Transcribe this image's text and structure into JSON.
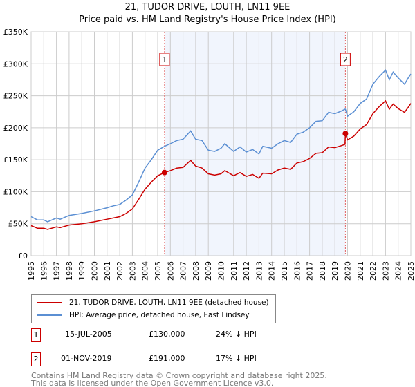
{
  "chart_data": {
    "type": "line",
    "title": "21, TUDOR DRIVE, LOUTH, LN11 9EE",
    "subtitle": "Price paid vs. HM Land Registry's House Price Index (HPI)",
    "xlim": [
      1995,
      2025
    ],
    "ylim": [
      0,
      350000
    ],
    "x_ticks": [
      "1995",
      "1996",
      "1997",
      "1998",
      "1999",
      "2000",
      "2001",
      "2002",
      "2003",
      "2004",
      "2005",
      "2006",
      "2007",
      "2008",
      "2009",
      "2010",
      "2011",
      "2012",
      "2013",
      "2014",
      "2015",
      "2016",
      "2017",
      "2018",
      "2019",
      "2020",
      "2021",
      "2022",
      "2023",
      "2024",
      "2025"
    ],
    "y_ticks": [
      {
        "v": 0,
        "label": "£0"
      },
      {
        "v": 50000,
        "label": "£50K"
      },
      {
        "v": 100000,
        "label": "£100K"
      },
      {
        "v": 150000,
        "label": "£150K"
      },
      {
        "v": 200000,
        "label": "£200K"
      },
      {
        "v": 250000,
        "label": "£250K"
      },
      {
        "v": 300000,
        "label": "£300K"
      },
      {
        "v": 350000,
        "label": "£350K"
      }
    ],
    "grid": true,
    "shaded_range": [
      2005.54,
      2019.83
    ],
    "series": [
      {
        "name": "21, TUDOR DRIVE, LOUTH, LN11 9EE (detached house)",
        "color": "#cc0000",
        "x": [
          1995,
          1995.5,
          1996,
          1996.3,
          1997,
          1997.3,
          1998,
          1999,
          2000,
          2001,
          2001.5,
          2002,
          2002.5,
          2003,
          2003.5,
          2004,
          2004.5,
          2005,
          2005.54,
          2006,
          2006.5,
          2007,
          2007.6,
          2008,
          2008.5,
          2009,
          2009.5,
          2010,
          2010.3,
          2011,
          2011.5,
          2012,
          2012.5,
          2013,
          2013.3,
          2014,
          2014.5,
          2015,
          2015.5,
          2016,
          2016.5,
          2017,
          2017.5,
          2018,
          2018.5,
          2019,
          2019.5,
          2019.8,
          2019.83,
          2020,
          2020.5,
          2021,
          2021.5,
          2022,
          2022.5,
          2023,
          2023.3,
          2023.6,
          2024,
          2024.5,
          2024.8,
          2025
        ],
        "y": [
          47000,
          43000,
          43000,
          41000,
          45000,
          44000,
          48000,
          50000,
          53000,
          57000,
          59000,
          61000,
          66000,
          73000,
          88000,
          104000,
          115000,
          125000,
          130000,
          133000,
          137000,
          138000,
          149000,
          140000,
          137000,
          128000,
          126000,
          128000,
          133000,
          125000,
          130000,
          124000,
          127000,
          121000,
          129000,
          128000,
          134000,
          137000,
          135000,
          145000,
          147000,
          152000,
          160000,
          161000,
          170000,
          169000,
          172000,
          174000,
          191000,
          181000,
          187000,
          198000,
          205000,
          222000,
          233000,
          242000,
          229000,
          237000,
          230000,
          224000,
          232000,
          238000
        ]
      },
      {
        "name": "HPI: Average price, detached house, East Lindsey",
        "color": "#5b8fd3",
        "x": [
          1995,
          1995.5,
          1996,
          1996.3,
          1997,
          1997.3,
          1998,
          1999,
          2000,
          2001,
          2001.5,
          2002,
          2002.5,
          2003,
          2003.5,
          2004,
          2004.5,
          2005,
          2005.54,
          2006,
          2006.5,
          2007,
          2007.6,
          2008,
          2008.5,
          2009,
          2009.5,
          2010,
          2010.3,
          2011,
          2011.5,
          2012,
          2012.5,
          2013,
          2013.3,
          2014,
          2014.5,
          2015,
          2015.5,
          2016,
          2016.5,
          2017,
          2017.5,
          2018,
          2018.5,
          2019,
          2019.5,
          2019.8,
          2019.83,
          2020,
          2020.5,
          2021,
          2021.5,
          2022,
          2022.5,
          2023,
          2023.3,
          2023.6,
          2024,
          2024.5,
          2024.8,
          2025
        ],
        "y": [
          61000,
          56000,
          56000,
          53000,
          59000,
          57000,
          63000,
          66000,
          70000,
          75000,
          78000,
          80000,
          87000,
          95000,
          115000,
          137000,
          150000,
          165000,
          171000,
          175000,
          180000,
          182000,
          195000,
          182000,
          180000,
          165000,
          163000,
          168000,
          175000,
          163000,
          170000,
          162000,
          166000,
          159000,
          171000,
          168000,
          175000,
          180000,
          177000,
          190000,
          193000,
          200000,
          210000,
          211000,
          224000,
          222000,
          226000,
          229000,
          229000,
          218000,
          225000,
          238000,
          245000,
          268000,
          280000,
          290000,
          275000,
          287000,
          278000,
          268000,
          278000,
          284000
        ]
      }
    ],
    "annotations": [
      {
        "label": "1",
        "x": 2005.54,
        "y": 130000
      },
      {
        "label": "2",
        "x": 2019.83,
        "y": 191000
      }
    ]
  },
  "legend": {
    "items": [
      "21, TUDOR DRIVE, LOUTH, LN11 9EE (detached house)",
      "HPI: Average price, detached house, East Lindsey"
    ]
  },
  "transactions": [
    {
      "num": "1",
      "date": "15-JUL-2005",
      "price": "£130,000",
      "hpi": "24% ↓ HPI"
    },
    {
      "num": "2",
      "date": "01-NOV-2019",
      "price": "£191,000",
      "hpi": "17% ↓ HPI"
    }
  ],
  "footer": {
    "line1": "Contains HM Land Registry data © Crown copyright and database right 2025.",
    "line2": "This data is licensed under the Open Government Licence v3.0."
  }
}
